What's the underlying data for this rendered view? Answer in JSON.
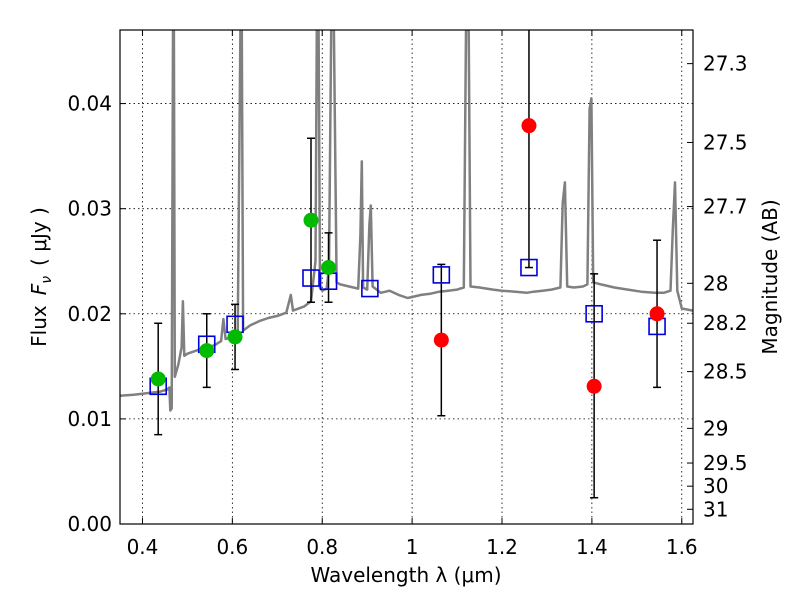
{
  "chart_data": {
    "type": "scatter",
    "title": "",
    "xlabel": "Wavelength  λ (μm)",
    "ylabel": "Flux  F_ν  ( μJy )",
    "ylabel_parts": {
      "word": "Flux",
      "var": "F",
      "sub": "ν",
      "unit": "( μJy )"
    },
    "ylabel_right": "Magnitude (AB)",
    "xlim": [
      0.35,
      1.625
    ],
    "ylim": [
      0.0,
      0.047
    ],
    "grid": true,
    "x_ticks": [
      0.4,
      0.6,
      0.8,
      1.0,
      1.2,
      1.4,
      1.6
    ],
    "x_tick_labels": [
      "0.4",
      "0.6",
      "0.8",
      "1",
      "1.2",
      "1.4",
      "1.6"
    ],
    "y_ticks": [
      0.0,
      0.01,
      0.02,
      0.03,
      0.04
    ],
    "y_tick_labels": [
      "0.00",
      "0.01",
      "0.02",
      "0.03",
      "0.04"
    ],
    "right_ticks": [
      {
        "label": "27.3",
        "flux": 0.0438
      },
      {
        "label": "27.5",
        "flux": 0.0363
      },
      {
        "label": "27.7",
        "flux": 0.0302
      },
      {
        "label": "28",
        "flux": 0.0229
      },
      {
        "label": "28.2",
        "flux": 0.0191
      },
      {
        "label": "28.5",
        "flux": 0.0145
      },
      {
        "label": "29",
        "flux": 0.0091
      },
      {
        "label": "29.5",
        "flux": 0.0058
      },
      {
        "label": "30",
        "flux": 0.0036
      },
      {
        "label": "31",
        "flux": 0.0014
      }
    ],
    "colors": {
      "green": "#00bb00",
      "red": "#ff0000",
      "model_square": "#0000dd",
      "sed": "#808080",
      "errorbar": "#000000"
    },
    "series": [
      {
        "name": "green_points",
        "color": "#00bb00",
        "points": [
          {
            "x": 0.435,
            "y": 0.0138,
            "err_lo": 0.0085,
            "err_hi": 0.0191
          },
          {
            "x": 0.543,
            "y": 0.0165,
            "err_lo": 0.013,
            "err_hi": 0.02
          },
          {
            "x": 0.606,
            "y": 0.0178,
            "err_lo": 0.0147,
            "err_hi": 0.0209
          },
          {
            "x": 0.775,
            "y": 0.0289,
            "err_lo": 0.0211,
            "err_hi": 0.0367
          },
          {
            "x": 0.814,
            "y": 0.0244,
            "err_lo": 0.0211,
            "err_hi": 0.0277
          }
        ]
      },
      {
        "name": "red_points",
        "color": "#ff0000",
        "points": [
          {
            "x": 1.065,
            "y": 0.0175,
            "err_lo": 0.0103,
            "err_hi": 0.0247
          },
          {
            "x": 1.26,
            "y": 0.0379,
            "err_lo": 0.0244,
            "err_hi": 0.052
          },
          {
            "x": 1.405,
            "y": 0.0131,
            "err_lo": 0.0025,
            "err_hi": 0.0238
          },
          {
            "x": 1.545,
            "y": 0.02,
            "err_lo": 0.013,
            "err_hi": 0.027
          }
        ]
      },
      {
        "name": "model_squares",
        "color": "#0000dd",
        "points": [
          {
            "x": 0.435,
            "y": 0.0131
          },
          {
            "x": 0.543,
            "y": 0.0171
          },
          {
            "x": 0.606,
            "y": 0.019
          },
          {
            "x": 0.775,
            "y": 0.0234
          },
          {
            "x": 0.814,
            "y": 0.0231
          },
          {
            "x": 0.906,
            "y": 0.0224
          },
          {
            "x": 1.065,
            "y": 0.0237
          },
          {
            "x": 1.26,
            "y": 0.0244
          },
          {
            "x": 1.405,
            "y": 0.02
          },
          {
            "x": 1.545,
            "y": 0.0188
          }
        ]
      }
    ],
    "sed_line": [
      [
        0.35,
        0.0122
      ],
      [
        0.38,
        0.0123
      ],
      [
        0.4,
        0.0124
      ],
      [
        0.42,
        0.0125
      ],
      [
        0.44,
        0.0126
      ],
      [
        0.455,
        0.0128
      ],
      [
        0.46,
        0.013
      ],
      [
        0.462,
        0.0108
      ],
      [
        0.465,
        0.011
      ],
      [
        0.468,
        0.047
      ],
      [
        0.47,
        0.047
      ],
      [
        0.472,
        0.014
      ],
      [
        0.48,
        0.0152
      ],
      [
        0.487,
        0.0168
      ],
      [
        0.49,
        0.0212
      ],
      [
        0.493,
        0.016
      ],
      [
        0.5,
        0.0162
      ],
      [
        0.52,
        0.0165
      ],
      [
        0.54,
        0.0168
      ],
      [
        0.56,
        0.017
      ],
      [
        0.575,
        0.0174
      ],
      [
        0.58,
        0.0195
      ],
      [
        0.585,
        0.0176
      ],
      [
        0.6,
        0.0178
      ],
      [
        0.612,
        0.018
      ],
      [
        0.618,
        0.047
      ],
      [
        0.621,
        0.047
      ],
      [
        0.624,
        0.0184
      ],
      [
        0.64,
        0.0189
      ],
      [
        0.66,
        0.0193
      ],
      [
        0.68,
        0.0196
      ],
      [
        0.7,
        0.0198
      ],
      [
        0.72,
        0.0201
      ],
      [
        0.73,
        0.0218
      ],
      [
        0.735,
        0.0203
      ],
      [
        0.76,
        0.0207
      ],
      [
        0.775,
        0.0212
      ],
      [
        0.785,
        0.025
      ],
      [
        0.788,
        0.047
      ],
      [
        0.792,
        0.047
      ],
      [
        0.795,
        0.0225
      ],
      [
        0.8,
        0.0222
      ],
      [
        0.81,
        0.0224
      ],
      [
        0.815,
        0.0245
      ],
      [
        0.82,
        0.047
      ],
      [
        0.826,
        0.047
      ],
      [
        0.832,
        0.023
      ],
      [
        0.84,
        0.0228
      ],
      [
        0.86,
        0.0226
      ],
      [
        0.88,
        0.0224
      ],
      [
        0.885,
        0.0275
      ],
      [
        0.888,
        0.0345
      ],
      [
        0.891,
        0.0225
      ],
      [
        0.9,
        0.0223
      ],
      [
        0.905,
        0.0285
      ],
      [
        0.908,
        0.0303
      ],
      [
        0.912,
        0.0226
      ],
      [
        0.93,
        0.022
      ],
      [
        0.95,
        0.0222
      ],
      [
        0.97,
        0.0218
      ],
      [
        0.99,
        0.0215
      ],
      [
        1.0,
        0.0216
      ],
      [
        1.02,
        0.0218
      ],
      [
        1.04,
        0.0219
      ],
      [
        1.06,
        0.0221
      ],
      [
        1.08,
        0.0222
      ],
      [
        1.1,
        0.0223
      ],
      [
        1.115,
        0.0225
      ],
      [
        1.12,
        0.047
      ],
      [
        1.126,
        0.047
      ],
      [
        1.13,
        0.0226
      ],
      [
        1.15,
        0.0225
      ],
      [
        1.18,
        0.0223
      ],
      [
        1.2,
        0.0222
      ],
      [
        1.23,
        0.0221
      ],
      [
        1.255,
        0.022
      ],
      [
        1.27,
        0.0221
      ],
      [
        1.29,
        0.0222
      ],
      [
        1.31,
        0.0223
      ],
      [
        1.33,
        0.0225
      ],
      [
        1.335,
        0.0305
      ],
      [
        1.34,
        0.0325
      ],
      [
        1.345,
        0.0226
      ],
      [
        1.36,
        0.0225
      ],
      [
        1.38,
        0.0226
      ],
      [
        1.39,
        0.0228
      ],
      [
        1.395,
        0.0395
      ],
      [
        1.399,
        0.0405
      ],
      [
        1.403,
        0.023
      ],
      [
        1.42,
        0.0228
      ],
      [
        1.45,
        0.0225
      ],
      [
        1.48,
        0.0223
      ],
      [
        1.51,
        0.0221
      ],
      [
        1.54,
        0.022
      ],
      [
        1.56,
        0.022
      ],
      [
        1.575,
        0.0222
      ],
      [
        1.58,
        0.028
      ],
      [
        1.585,
        0.0325
      ],
      [
        1.59,
        0.0222
      ],
      [
        1.6,
        0.0205
      ],
      [
        1.625,
        0.0203
      ]
    ]
  }
}
